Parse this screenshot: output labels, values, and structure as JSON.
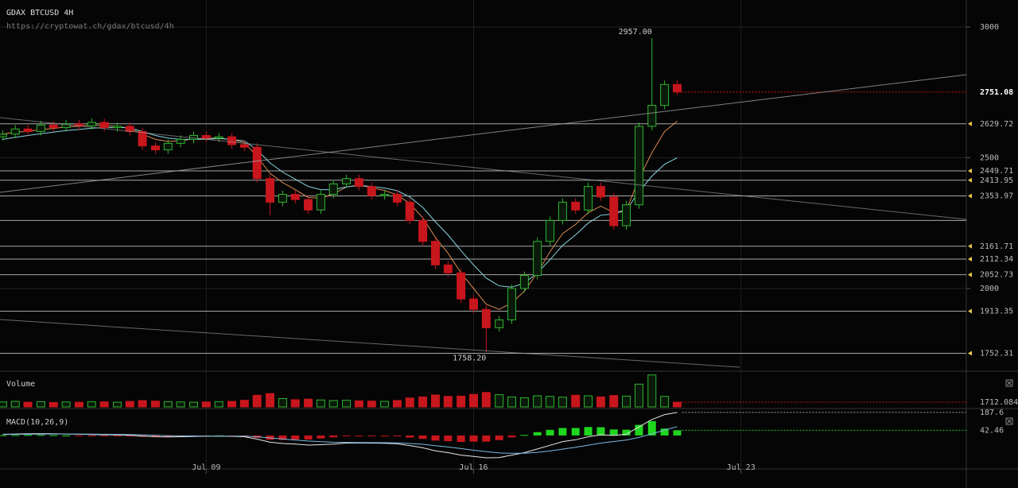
{
  "chart_data": {
    "type": "candlestick",
    "title": "GDAX BTCUSD 4H",
    "subtitle": "https://cryptowat.ch/gdax/btcusd/4h",
    "x": [
      3.67,
      4,
      4.33,
      4.67,
      5,
      5.33,
      5.67,
      6,
      6.33,
      6.67,
      7,
      7.33,
      7.67,
      8,
      8.33,
      8.67,
      9,
      9.33,
      9.67,
      10,
      10.33,
      10.67,
      11,
      11.33,
      11.67,
      12,
      12.33,
      12.67,
      13,
      13.33,
      13.67,
      14,
      14.33,
      14.67,
      15,
      15.33,
      15.67,
      16,
      16.33,
      16.67,
      17,
      17.33,
      17.67,
      18,
      18.33,
      18.67,
      19,
      19.33,
      19.67,
      20,
      20.33,
      20.67,
      21,
      21.33
    ],
    "xlim": [
      3.6,
      28.9
    ],
    "xticks": [
      {
        "value": 9,
        "label": "Jul 09"
      },
      {
        "value": 16,
        "label": "Jul 16"
      },
      {
        "value": 23,
        "label": "Jul 23"
      }
    ],
    "open": [
      2580,
      2590,
      2610,
      2600,
      2625,
      2615,
      2630,
      2622,
      2635,
      2615,
      2620,
      2600,
      2545,
      2530,
      2555,
      2570,
      2585,
      2575,
      2580,
      2550,
      2540,
      2420,
      2330,
      2360,
      2340,
      2300,
      2360,
      2400,
      2420,
      2390,
      2355,
      2360,
      2330,
      2260,
      2180,
      2090,
      2060,
      1960,
      1920,
      1850,
      1880,
      2000,
      2050,
      2180,
      2260,
      2330,
      2300,
      2390,
      2350,
      2240,
      2320,
      2620,
      2700,
      2780
    ],
    "high": [
      2605,
      2625,
      2625,
      2640,
      2640,
      2645,
      2645,
      2650,
      2650,
      2635,
      2635,
      2615,
      2560,
      2570,
      2585,
      2600,
      2600,
      2595,
      2595,
      2565,
      2555,
      2435,
      2375,
      2375,
      2355,
      2375,
      2415,
      2435,
      2435,
      2405,
      2375,
      2375,
      2345,
      2275,
      2195,
      2105,
      2075,
      1975,
      1935,
      1895,
      2015,
      2065,
      2195,
      2275,
      2345,
      2345,
      2405,
      2405,
      2365,
      2335,
      2635,
      2957,
      2795,
      2795
    ],
    "low": [
      2565,
      2575,
      2585,
      2585,
      2600,
      2600,
      2607,
      2607,
      2600,
      2600,
      2585,
      2530,
      2515,
      2515,
      2540,
      2555,
      2560,
      2560,
      2535,
      2525,
      2405,
      2280,
      2315,
      2325,
      2285,
      2285,
      2345,
      2385,
      2375,
      2340,
      2340,
      2315,
      2245,
      2165,
      2075,
      2045,
      1945,
      1905,
      1758.2,
      1835,
      1865,
      1985,
      2035,
      2165,
      2245,
      2285,
      2285,
      2335,
      2225,
      2225,
      2305,
      2605,
      2685,
      2740
    ],
    "close": [
      2590,
      2610,
      2600,
      2625,
      2615,
      2630,
      2622,
      2635,
      2615,
      2620,
      2600,
      2545,
      2530,
      2555,
      2570,
      2585,
      2575,
      2580,
      2550,
      2540,
      2420,
      2330,
      2360,
      2340,
      2300,
      2360,
      2400,
      2420,
      2390,
      2355,
      2360,
      2330,
      2260,
      2180,
      2090,
      2060,
      1960,
      1920,
      1850,
      1880,
      2000,
      2050,
      2180,
      2260,
      2330,
      2300,
      2390,
      2350,
      2240,
      2320,
      2620,
      2700,
      2780,
      2751.08
    ],
    "up_color": "#2fb52f",
    "down_color": "#c8161d",
    "ylim": [
      1690,
      3103
    ],
    "yticks": [
      2000,
      2500,
      3000
    ],
    "levels": [
      2629.72,
      2449.71,
      2413.95,
      2353.97,
      2161.71,
      2112.34,
      2052.73,
      1913.35,
      1752.31
    ],
    "unlabeled_levels": [
      2260
    ],
    "annotations": [
      {
        "value": 2957,
        "label": "2957.00"
      },
      {
        "value": 1758.2,
        "label": "1758.20"
      }
    ],
    "ma": [
      {
        "color": "#d98a52",
        "values": [
          2590,
          2598,
          2600,
          2608,
          2612,
          2618,
          2620,
          2625,
          2622,
          2620,
          2612,
          2590,
          2570,
          2562,
          2565,
          2572,
          2574,
          2576,
          2568,
          2558,
          2505,
          2440,
          2405,
          2378,
          2348,
          2345,
          2362,
          2388,
          2396,
          2385,
          2375,
          2358,
          2325,
          2270,
          2195,
          2135,
          2060,
          2000,
          1940,
          1920,
          1945,
          1990,
          2060,
          2140,
          2210,
          2245,
          2290,
          2315,
          2290,
          2300,
          2420,
          2520,
          2600,
          2640
        ]
      },
      {
        "color": "#86d6de",
        "values": [
          2570,
          2578,
          2585,
          2592,
          2598,
          2604,
          2608,
          2613,
          2615,
          2616,
          2614,
          2600,
          2585,
          2575,
          2570,
          2570,
          2571,
          2573,
          2570,
          2564,
          2530,
          2480,
          2445,
          2418,
          2390,
          2378,
          2378,
          2388,
          2394,
          2390,
          2384,
          2374,
          2350,
          2310,
          2255,
          2205,
          2145,
          2090,
          2040,
          2010,
          2005,
          2020,
          2060,
          2110,
          2165,
          2205,
          2250,
          2280,
          2285,
          2300,
          2370,
          2430,
          2475,
          2500
        ]
      }
    ],
    "volume": {
      "label": "Volume",
      "ylim": [
        0,
        12000
      ],
      "values": [
        1800,
        2000,
        1700,
        1900,
        1600,
        1800,
        1700,
        1900,
        1800,
        1700,
        2000,
        2300,
        2100,
        1900,
        1800,
        1700,
        1800,
        1900,
        2000,
        2400,
        4200,
        4800,
        3000,
        2600,
        2800,
        2500,
        2300,
        2400,
        2200,
        2100,
        2000,
        2300,
        3200,
        3600,
        4300,
        3800,
        3900,
        4500,
        5200,
        4400,
        3600,
        3300,
        4000,
        3800,
        3500,
        4200,
        4000,
        3600,
        4100,
        3900,
        8200,
        11500,
        3800,
        1712.0844
      ]
    },
    "macd": {
      "label": "MACD(10,26,9)",
      "ylim": [
        -240,
        200
      ],
      "macd": [
        10,
        12,
        14,
        15,
        14,
        12,
        10,
        8,
        6,
        5,
        2,
        -5,
        -10,
        -12,
        -10,
        -8,
        -6,
        -5,
        -7,
        -10,
        -30,
        -55,
        -65,
        -70,
        -78,
        -75,
        -70,
        -62,
        -60,
        -62,
        -64,
        -68,
        -82,
        -100,
        -125,
        -140,
        -160,
        -170,
        -182,
        -180,
        -160,
        -140,
        -110,
        -80,
        -50,
        -35,
        -10,
        5,
        0,
        10,
        70,
        130,
        170,
        187.6
      ],
      "signal": [
        8,
        9,
        10,
        11,
        12,
        12,
        12,
        11,
        10,
        9,
        8,
        5,
        2,
        -1,
        -3,
        -4,
        -5,
        -5,
        -5,
        -6,
        -11,
        -20,
        -29,
        -37,
        -45,
        -51,
        -55,
        -56,
        -57,
        -58,
        -59,
        -61,
        -65,
        -72,
        -83,
        -94,
        -107,
        -120,
        -132,
        -142,
        -145,
        -144,
        -137,
        -126,
        -111,
        -96,
        -79,
        -62,
        -49,
        -37,
        -16,
        13,
        44,
        72
      ],
      "histogram": [
        2,
        3,
        4,
        4,
        2,
        0,
        -2,
        -3,
        -4,
        -4,
        -6,
        -10,
        -12,
        -11,
        -7,
        -4,
        -1,
        0,
        -2,
        -4,
        -19,
        -35,
        -36,
        -33,
        -33,
        -24,
        -15,
        -6,
        -3,
        -4,
        -5,
        -7,
        -17,
        -28,
        -42,
        -46,
        -53,
        -50,
        -50,
        -38,
        -15,
        4,
        27,
        46,
        61,
        61,
        69,
        67,
        49,
        47,
        86,
        117,
        56,
        42.46
      ]
    }
  }
}
